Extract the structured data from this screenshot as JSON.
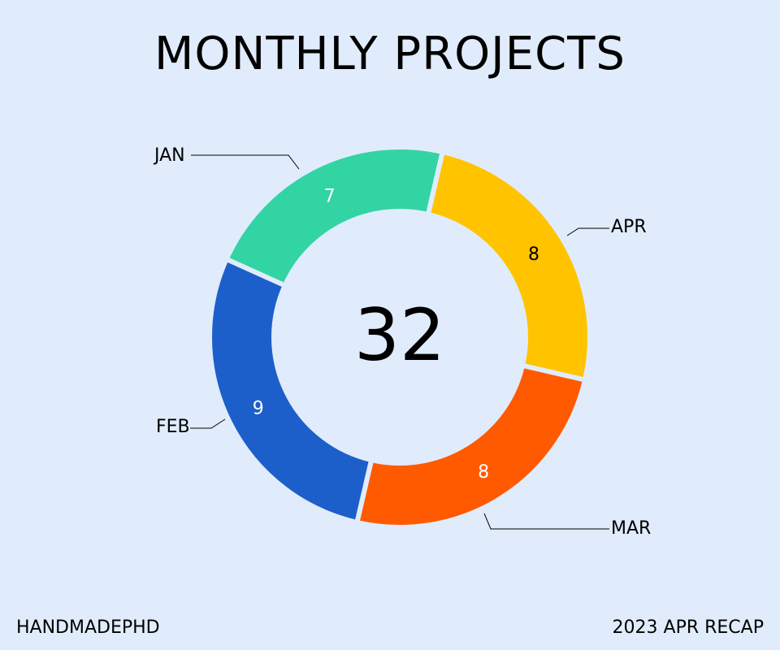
{
  "header": {
    "title": "MONTHLY PROJECTS"
  },
  "footer": {
    "left": "HANDMADEPHD",
    "right": "2023 APR RECAP"
  },
  "chart_data": {
    "type": "pie",
    "donut": true,
    "center_label": "32",
    "categories": [
      "JAN",
      "APR",
      "MAR",
      "FEB"
    ],
    "values": [
      8,
      8,
      9,
      7
    ],
    "colors": [
      "#ffc300",
      "#ff5a00",
      "#1c5fcb",
      "#33d4a4"
    ],
    "value_label_colors": [
      "#000000",
      "#ffffff",
      "#ffffff",
      "#ffffff"
    ],
    "background": "#e0ecfb",
    "legend": "none"
  }
}
